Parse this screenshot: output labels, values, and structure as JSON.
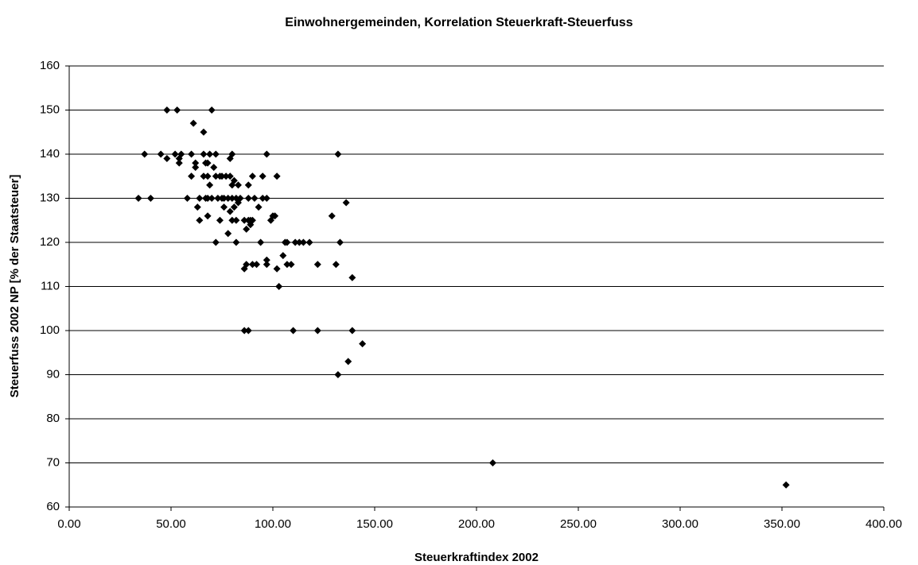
{
  "chart_data": {
    "type": "scatter",
    "title": "Einwohnergemeinden, Korrelation Steuerkraft-Steuerfuss",
    "x_label": "Steuerkraftindex 2002",
    "y_label": "Steuerfuss 2002 NP [% der Staatsteuer]",
    "marker": "diamond",
    "color": "#000000",
    "grid": true,
    "xlim": [
      0,
      400
    ],
    "xticks": [
      {
        "value": 0,
        "label": "0.00"
      },
      {
        "value": 50,
        "label": "50.00"
      },
      {
        "value": 100,
        "label": "100.00"
      },
      {
        "value": 150,
        "label": "150.00"
      },
      {
        "value": 200,
        "label": "200.00"
      },
      {
        "value": 250,
        "label": "250.00"
      },
      {
        "value": 300,
        "label": "300.00"
      },
      {
        "value": 350,
        "label": "350.00"
      },
      {
        "value": 400,
        "label": "400.00"
      }
    ],
    "ylim": [
      60,
      160
    ],
    "yticks": [
      60,
      70,
      80,
      90,
      100,
      110,
      120,
      130,
      140,
      150,
      160
    ],
    "x": [
      34,
      37,
      40,
      45,
      48,
      48,
      52,
      53,
      54,
      54,
      55,
      58,
      60,
      60,
      61,
      62,
      62,
      63,
      64,
      64,
      66,
      66,
      66,
      67,
      67,
      68,
      68,
      68,
      68,
      69,
      69,
      70,
      70,
      71,
      72,
      72,
      72,
      73,
      74,
      74,
      75,
      75,
      76,
      76,
      77,
      78,
      78,
      79,
      79,
      79,
      80,
      80,
      80,
      80,
      81,
      81,
      82,
      82,
      82,
      83,
      83,
      84,
      86,
      86,
      86,
      87,
      87,
      88,
      88,
      88,
      88,
      89,
      89,
      90,
      90,
      90,
      91,
      92,
      93,
      94,
      95,
      95,
      97,
      97,
      97,
      97,
      99,
      100,
      101,
      102,
      102,
      103,
      105,
      106,
      107,
      107,
      109,
      110,
      111,
      113,
      115,
      118,
      122,
      122,
      129,
      131,
      132,
      132,
      133,
      136,
      137,
      139,
      139,
      144,
      208,
      352
    ],
    "values": [
      130,
      140,
      130,
      140,
      150,
      139,
      140,
      150,
      138,
      139,
      140,
      130,
      135,
      140,
      147,
      137,
      138,
      128,
      125,
      130,
      135,
      145,
      140,
      138,
      130,
      138,
      135,
      126,
      130,
      140,
      133,
      150,
      130,
      137,
      135,
      120,
      140,
      130,
      135,
      125,
      130,
      135,
      128,
      130,
      135,
      122,
      130,
      127,
      139,
      135,
      130,
      125,
      133,
      140,
      128,
      134,
      130,
      125,
      120,
      133,
      129,
      130,
      125,
      114,
      100,
      115,
      123,
      130,
      125,
      133,
      100,
      124,
      125,
      135,
      115,
      125,
      130,
      115,
      128,
      120,
      135,
      130,
      130,
      116,
      115,
      140,
      125,
      126,
      126,
      135,
      114,
      110,
      117,
      120,
      115,
      120,
      115,
      100,
      120,
      120,
      120,
      120,
      100,
      115,
      126,
      115,
      90,
      140,
      120,
      129,
      93,
      100,
      112,
      97,
      70,
      65
    ]
  }
}
